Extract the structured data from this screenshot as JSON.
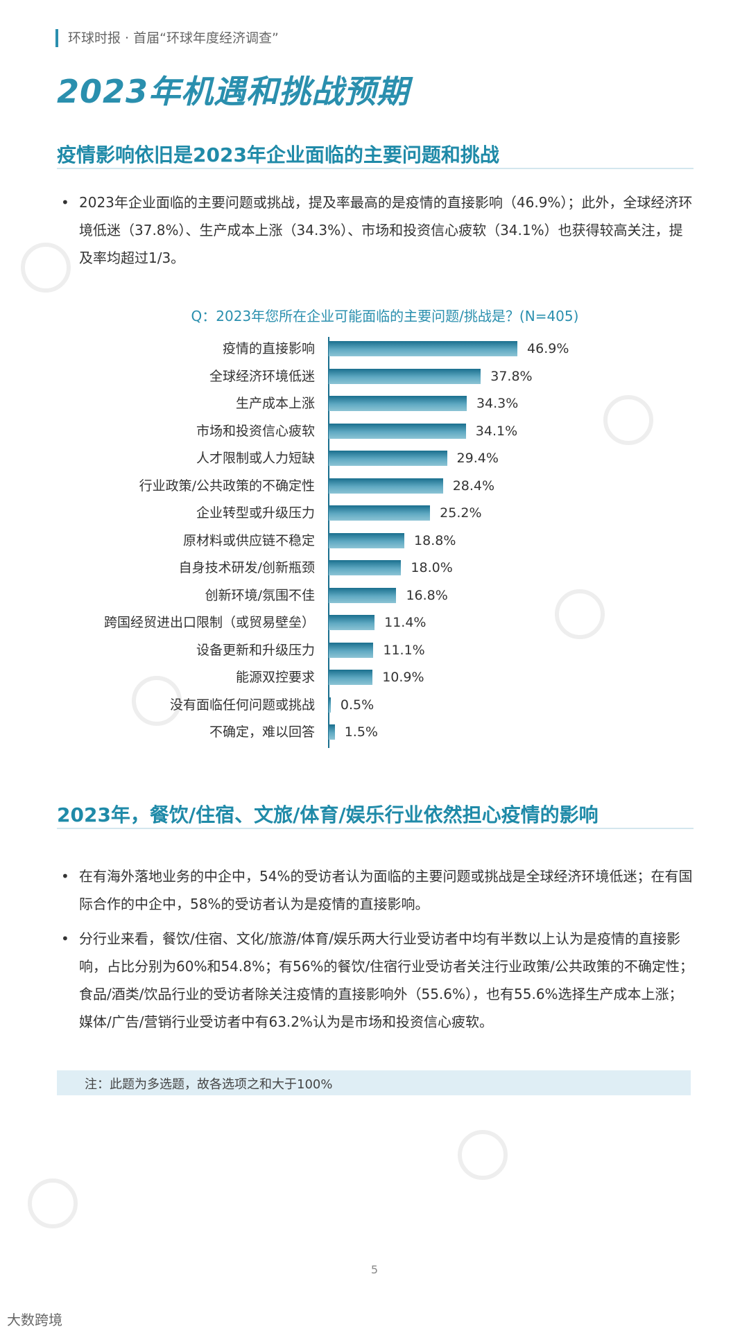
{
  "header": {
    "text": "环球时报 · 首届“环球年度经济调查”"
  },
  "main_title": "2023年机遇和挑战预期",
  "section1": {
    "title": "疫情影响依旧是2023年企业面临的主要问题和挑战",
    "bullet": "2023年企业面临的主要问题或挑战，提及率最高的是疫情的直接影响（46.9%）；此外，全球经济环境低迷（37.8%）、生产成本上涨（34.3%）、市场和投资信心疲软（34.1%）也获得较高关注，提及率均超过1/3。"
  },
  "chart_data": {
    "type": "bar",
    "orientation": "horizontal",
    "title": "Q：2023年您所在企业可能面临的主要问题/挑战是？(N=405)",
    "unit": "%",
    "categories": [
      "疫情的直接影响",
      "全球经济环境低迷",
      "生产成本上涨",
      "市场和投资信心疲软",
      "人才限制或人力短缺",
      "行业政策/公共政策的不确定性",
      "企业转型或升级压力",
      "原材料或供应链不稳定",
      "自身技术研发/创新瓶颈",
      "创新环境/氛围不佳",
      "跨国经贸进出口限制（或贸易壁垒）",
      "设备更新和升级压力",
      "能源双控要求",
      "没有面临任何问题或挑战",
      "不确定，难以回答"
    ],
    "values": [
      46.9,
      37.8,
      34.3,
      34.1,
      29.4,
      28.4,
      25.2,
      18.8,
      18.0,
      16.8,
      11.4,
      11.1,
      10.9,
      0.5,
      1.5
    ],
    "labels": [
      "46.9%",
      "37.8%",
      "34.3%",
      "34.1%",
      "29.4%",
      "28.4%",
      "25.2%",
      "18.8%",
      "18.0%",
      "16.8%",
      "11.4%",
      "11.1%",
      "10.9%",
      "0.5%",
      "1.5%"
    ],
    "xlim": [
      0,
      50
    ]
  },
  "section2": {
    "title": "2023年，餐饮/住宿、文旅/体育/娱乐行业依然担心疫情的影响",
    "bullets": [
      "在有海外落地业务的中企中，54%的受访者认为面临的主要问题或挑战是全球经济环境低迷；在有国际合作的中企中，58%的受访者认为是疫情的直接影响。",
      "分行业来看，餐饮/住宿、文化/旅游/体育/娱乐两大行业受访者中均有半数以上认为是疫情的直接影响，占比分别为60%和54.8%；有56%的餐饮/住宿行业受访者关注行业政策/公共政策的不确定性；食品/酒类/饮品行业的受访者除关注疫情的直接影响外（55.6%），也有55.6%选择生产成本上涨；媒体/广告/营销行业受访者中有63.2%认为是市场和投资信心疲软。"
    ]
  },
  "note": "注：此题为多选题，故各选项之和大于100%",
  "page_number": "5",
  "footer_brand": "大数跨境",
  "bullet_glyph": "•",
  "colors": {
    "accent": "#2a8fae",
    "bar_dark": "#1a6f8e",
    "bar_light": "#8cc4d5",
    "note_bg": "#dfeef5"
  }
}
